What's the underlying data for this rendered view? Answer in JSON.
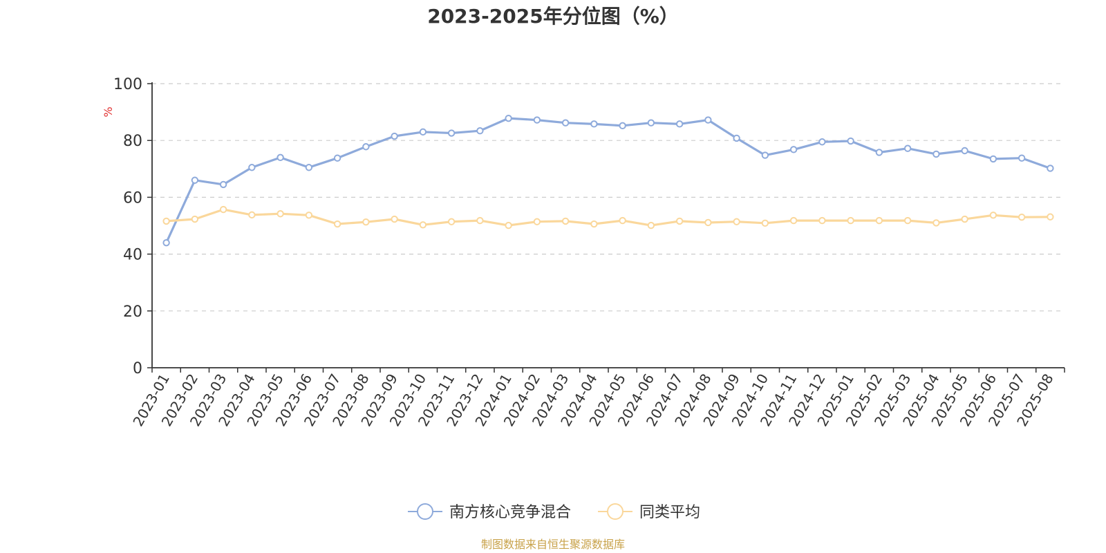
{
  "chart_data": {
    "type": "line",
    "title": "2023-2025年分位图（%）",
    "ylabel": "%",
    "xlabel": "",
    "ylim": [
      0,
      100
    ],
    "yticks": [
      0,
      20,
      40,
      60,
      80,
      100
    ],
    "grid": true,
    "legend_position": "bottom-center",
    "categories": [
      "2023-01",
      "2023-02",
      "2023-03",
      "2023-04",
      "2023-05",
      "2023-06",
      "2023-07",
      "2023-08",
      "2023-09",
      "2023-10",
      "2023-11",
      "2023-12",
      "2024-01",
      "2024-02",
      "2024-03",
      "2024-04",
      "2024-05",
      "2024-06",
      "2024-07",
      "2024-08",
      "2024-09",
      "2024-10",
      "2024-11",
      "2024-12",
      "2025-01",
      "2025-02",
      "2025-03",
      "2025-04",
      "2025-05",
      "2025-06",
      "2025-07",
      "2025-08"
    ],
    "series": [
      {
        "name": "南方核心竞争混合",
        "color": "#8eaadb",
        "values": [
          44.0,
          66.0,
          64.5,
          70.5,
          74.0,
          70.5,
          73.8,
          77.8,
          81.5,
          83.0,
          82.6,
          83.4,
          87.8,
          87.2,
          86.2,
          85.8,
          85.2,
          86.2,
          85.8,
          87.2,
          80.8,
          74.8,
          76.8,
          79.5,
          79.8,
          75.8,
          77.2,
          75.2,
          76.4,
          73.5,
          73.8,
          70.2
        ]
      },
      {
        "name": "同类平均",
        "color": "#fad79b",
        "values": [
          51.6,
          52.3,
          55.7,
          53.8,
          54.2,
          53.7,
          50.6,
          51.3,
          52.3,
          50.3,
          51.4,
          51.8,
          50.1,
          51.4,
          51.6,
          50.6,
          51.8,
          50.1,
          51.6,
          51.1,
          51.4,
          50.9,
          51.8,
          51.8,
          51.8,
          51.8,
          51.8,
          51.0,
          52.3,
          53.7,
          53.0,
          53.1
        ]
      }
    ],
    "source": "制图数据来自恒生聚源数据库"
  }
}
